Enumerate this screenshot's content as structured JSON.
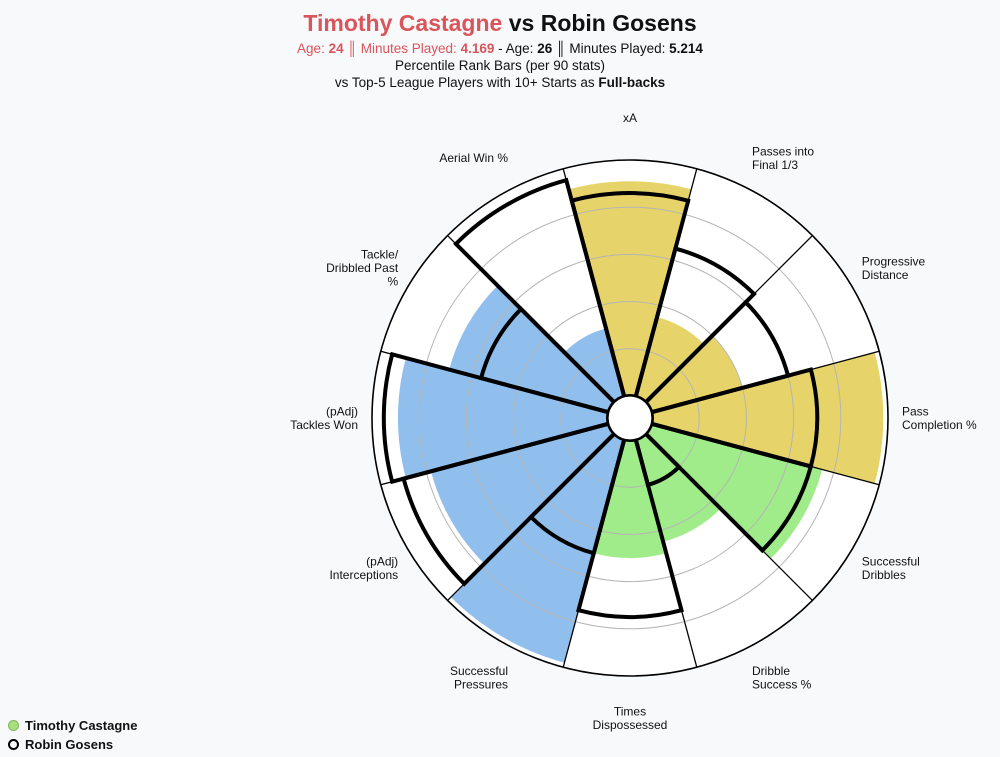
{
  "title": {
    "player1": "Timothy Castagne",
    "vs": "vs",
    "player2": "Robin Gosens"
  },
  "info": {
    "p1_age_label": "Age:",
    "p1_age": "24",
    "p1_sep": "║",
    "p1_minutes_label": "Minutes Played:",
    "p1_minutes": "4.169",
    "dash": "-",
    "p2_age_label": "Age:",
    "p2_age": "26",
    "p2_sep": "║",
    "p2_minutes_label": "Minutes Played:",
    "p2_minutes": "5.214"
  },
  "subtitle1": "Percentile Rank Bars (per 90 stats)",
  "subtitle2_prefix": "vs Top-5 League Players with 10+ Starts as",
  "subtitle2_bold": "Full-backs",
  "legend": [
    {
      "name": "Timothy Castagne",
      "color": "#a8e07d",
      "style": "filled"
    },
    {
      "name": "Robin Gosens",
      "color": "#000000",
      "style": "outline"
    }
  ],
  "colors": {
    "attacking": "#e6d46a",
    "possession": "#a0ec8a",
    "defending": "#90bfee",
    "outline": "#000000",
    "grid": "#b5b5b5"
  },
  "chart_data": {
    "type": "polar-bar",
    "scale": [
      0,
      100
    ],
    "categories": [
      {
        "label": [
          "xA"
        ],
        "group": "attacking",
        "castagne": 91,
        "gosens": 86
      },
      {
        "label": [
          "Passes into",
          "Final 1/3"
        ],
        "group": "attacking",
        "castagne": 35,
        "gosens": 65
      },
      {
        "label": [
          "Progressive",
          "Distance"
        ],
        "group": "attacking",
        "castagne": 40,
        "gosens": 60
      },
      {
        "label": [
          "Pass",
          "Completion %"
        ],
        "group": "attacking",
        "castagne": 98,
        "gosens": 70
      },
      {
        "label": [
          "Successful",
          "Dribbles"
        ],
        "group": "possession",
        "castagne": 75,
        "gosens": 70
      },
      {
        "label": [
          "Dribble",
          "Success %"
        ],
        "group": "possession",
        "castagne": 45,
        "gosens": 20
      },
      {
        "label": [
          "Times",
          "Dispossessed"
        ],
        "group": "possession",
        "castagne": 50,
        "gosens": 75
      },
      {
        "label": [
          "Successful",
          "Pressures"
        ],
        "group": "defending",
        "castagne": 98,
        "gosens": 50
      },
      {
        "label": [
          "(pAdj)",
          "Interceptions"
        ],
        "group": "defending",
        "castagne": 78,
        "gosens": 90
      },
      {
        "label": [
          "(pAdj)",
          "Tackles Won"
        ],
        "group": "defending",
        "castagne": 89,
        "gosens": 95
      },
      {
        "label": [
          "Tackle/",
          "Dribbled Past",
          "%"
        ],
        "group": "defending",
        "castagne": 70,
        "gosens": 56
      },
      {
        "label": [
          "Aerial Win %"
        ],
        "group": "defending",
        "castagne": 30,
        "gosens": 95
      }
    ]
  }
}
